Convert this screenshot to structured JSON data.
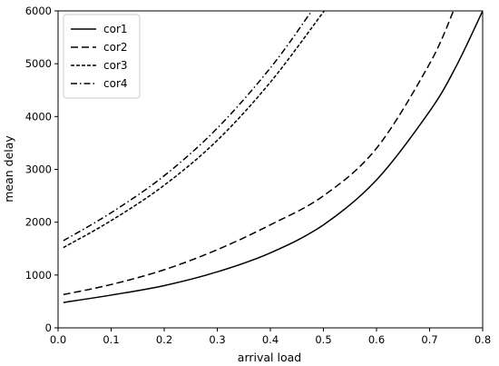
{
  "chart_data": {
    "type": "line",
    "title": "",
    "xlabel": "arrival load",
    "ylabel": "mean delay",
    "xlim": [
      0.0,
      0.8
    ],
    "ylim": [
      0,
      6000
    ],
    "xticks": [
      "0.0",
      "0.1",
      "0.2",
      "0.3",
      "0.4",
      "0.5",
      "0.6",
      "0.7",
      "0.8"
    ],
    "yticks": [
      "0",
      "1000",
      "2000",
      "3000",
      "4000",
      "5000",
      "6000"
    ],
    "grid": false,
    "legend_position": "top-left",
    "series": [
      {
        "name": "cor1",
        "dash": "solid",
        "x": [
          0.01,
          0.1,
          0.2,
          0.3,
          0.4,
          0.5,
          0.6,
          0.7,
          0.75,
          0.8
        ],
        "y": [
          480,
          620,
          800,
          1060,
          1420,
          1950,
          2800,
          4100,
          4950,
          6000
        ]
      },
      {
        "name": "cor2",
        "dash": "long-dash",
        "x": [
          0.01,
          0.1,
          0.2,
          0.3,
          0.4,
          0.5,
          0.6,
          0.7,
          0.745
        ],
        "y": [
          630,
          820,
          1100,
          1480,
          1950,
          2500,
          3400,
          5000,
          6000
        ]
      },
      {
        "name": "cor3",
        "dash": "short-dash",
        "x": [
          0.01,
          0.1,
          0.2,
          0.3,
          0.4,
          0.5,
          0.502
        ],
        "y": [
          1520,
          2030,
          2700,
          3550,
          4650,
          5980,
          6000
        ]
      },
      {
        "name": "cor4",
        "dash": "dash-dot",
        "x": [
          0.01,
          0.1,
          0.2,
          0.3,
          0.4,
          0.478
        ],
        "y": [
          1650,
          2180,
          2880,
          3780,
          4920,
          6000
        ]
      }
    ]
  },
  "colors": {
    "line": "#000000",
    "axes": "#000000",
    "background": "#ffffff"
  }
}
